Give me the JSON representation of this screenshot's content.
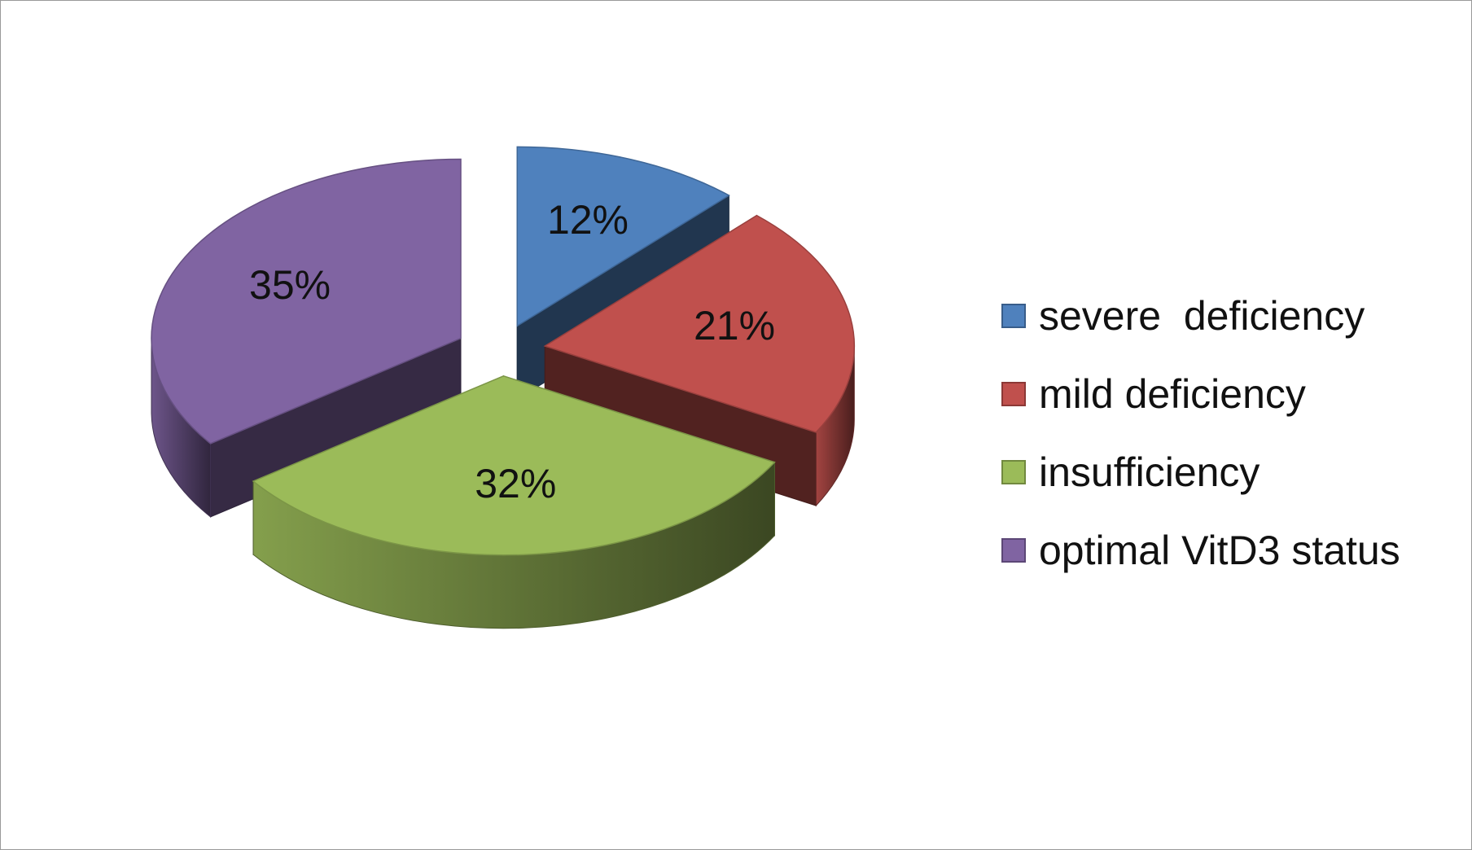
{
  "chart_data": {
    "type": "pie",
    "title": "",
    "style": "3d-exploded",
    "legend_position": "right",
    "slices": [
      {
        "name": "severe  deficiency",
        "value": 12,
        "label": "12%",
        "color": "#4F81BD",
        "edge": "#385D8A"
      },
      {
        "name": "mild deficiency",
        "value": 21,
        "label": "21%",
        "color": "#C0504D",
        "edge": "#8C3836"
      },
      {
        "name": "insufficiency",
        "value": 32,
        "label": "32%",
        "color": "#9BBB59",
        "edge": "#71893F"
      },
      {
        "name": "optimal VitD3 status",
        "value": 35,
        "label": "35%",
        "color": "#8064A2",
        "edge": "#5C4776"
      }
    ]
  }
}
